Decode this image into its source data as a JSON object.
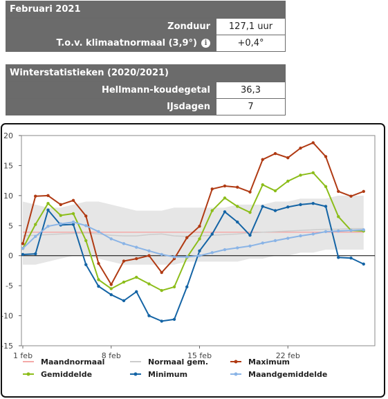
{
  "month_table": {
    "title": "Februari 2021",
    "rows": [
      {
        "label": "Zonduur",
        "value": "127,1 uur",
        "has_info": false
      },
      {
        "label": "T.o.v. klimaatnormaal (3,9°)",
        "value": "+0,4°",
        "has_info": true
      }
    ]
  },
  "winter_table": {
    "title": "Winterstatistieken (2020/2021)",
    "rows": [
      {
        "label": "Hellmann-koudegetal",
        "value": "36,3"
      },
      {
        "label": "IJsdagen",
        "value": "7"
      }
    ]
  },
  "chart_data": {
    "type": "line",
    "x_tick_labels": [
      "1 feb",
      "8 feb",
      "15 feb",
      "22 feb"
    ],
    "x_tick_days": [
      1,
      8,
      15,
      22
    ],
    "x_range": [
      1,
      28
    ],
    "y_ticks": [
      20,
      15,
      10,
      5,
      0,
      -5,
      -10,
      -15
    ],
    "ylim": [
      -15,
      20
    ],
    "grid": false,
    "legend_position": "bottom",
    "normal_band": {
      "lower": [
        -1.5,
        -1.5,
        -1.0,
        -0.5,
        0.0,
        0.0,
        -0.5,
        -1.0,
        -1.5,
        -1.5,
        -1.5,
        -1.5,
        -1.5,
        -1.0,
        -1.0,
        -1.0,
        -1.0,
        -1.0,
        -0.5,
        -0.5,
        0.0,
        0.0,
        0.5,
        0.5,
        1.0,
        1.0,
        1.0,
        1.0
      ],
      "upper": [
        9.0,
        8.5,
        8.0,
        8.0,
        8.5,
        9.0,
        9.0,
        8.5,
        8.0,
        7.5,
        7.5,
        7.5,
        8.0,
        8.0,
        8.0,
        8.0,
        8.0,
        8.5,
        8.5,
        8.5,
        9.0,
        9.0,
        9.5,
        9.5,
        9.5,
        10.0,
        10.0,
        10.0
      ]
    },
    "series": [
      {
        "name": "Maandnormaal",
        "color": "#f4a9a8",
        "style": "line",
        "values": [
          3.9,
          3.9,
          3.9,
          3.9,
          3.9,
          3.9,
          3.9,
          3.9,
          3.9,
          3.9,
          3.9,
          3.9,
          3.9,
          3.9,
          3.9,
          3.9,
          3.9,
          3.9,
          3.9,
          3.9,
          3.9,
          3.9,
          3.9,
          3.9,
          3.9,
          3.9,
          3.9,
          3.9
        ]
      },
      {
        "name": "Normaal gem.",
        "color": "#cccccc",
        "style": "line",
        "values": [
          3.3,
          3.4,
          3.5,
          3.6,
          3.7,
          3.8,
          3.6,
          3.4,
          3.3,
          3.3,
          3.5,
          3.6,
          3.3,
          3.2,
          3.3,
          3.4,
          3.5,
          3.6,
          3.8,
          3.9,
          4.0,
          4.1,
          4.2,
          4.3,
          4.4,
          4.4,
          4.5,
          4.5
        ]
      },
      {
        "name": "Maximum",
        "color": "#b03a13",
        "style": "markers",
        "values": [
          2.0,
          9.9,
          10.0,
          8.5,
          9.2,
          6.6,
          -1.3,
          -4.8,
          -0.9,
          -0.5,
          0.0,
          -2.8,
          -0.5,
          3.0,
          4.9,
          11.1,
          11.6,
          11.4,
          10.6,
          16.0,
          17.0,
          16.3,
          17.9,
          18.8,
          16.5,
          10.7,
          9.9,
          10.7
        ]
      },
      {
        "name": "Gemiddelde",
        "color": "#8cbd1a",
        "style": "markers",
        "values": [
          1.2,
          5.2,
          8.7,
          6.7,
          7.0,
          2.5,
          -4.0,
          -5.5,
          -4.4,
          -3.6,
          -4.7,
          -5.8,
          -5.2,
          -0.3,
          2.8,
          7.5,
          9.6,
          8.2,
          7.2,
          11.8,
          10.8,
          12.4,
          13.4,
          13.8,
          11.5,
          6.5,
          4.2,
          4.1
        ]
      },
      {
        "name": "Minimum",
        "color": "#1464a5",
        "style": "markers",
        "values": [
          0.2,
          0.3,
          7.6,
          5.1,
          5.2,
          -1.5,
          -5.1,
          -6.5,
          -7.5,
          -6.0,
          -10.0,
          -10.9,
          -10.6,
          -5.2,
          0.8,
          3.6,
          7.3,
          5.6,
          3.4,
          8.2,
          7.5,
          8.1,
          8.5,
          8.7,
          8.2,
          -0.3,
          -0.4,
          -1.4
        ]
      },
      {
        "name": "Maandgemiddelde",
        "color": "#8ab4e6",
        "style": "markers",
        "values": [
          1.2,
          3.2,
          4.9,
          5.3,
          5.6,
          5.0,
          4.0,
          2.8,
          2.0,
          1.4,
          0.8,
          0.2,
          -0.2,
          -0.2,
          0.0,
          0.5,
          1.0,
          1.3,
          1.6,
          2.1,
          2.5,
          2.9,
          3.3,
          3.6,
          4.0,
          4.1,
          4.2,
          4.3
        ]
      }
    ]
  }
}
